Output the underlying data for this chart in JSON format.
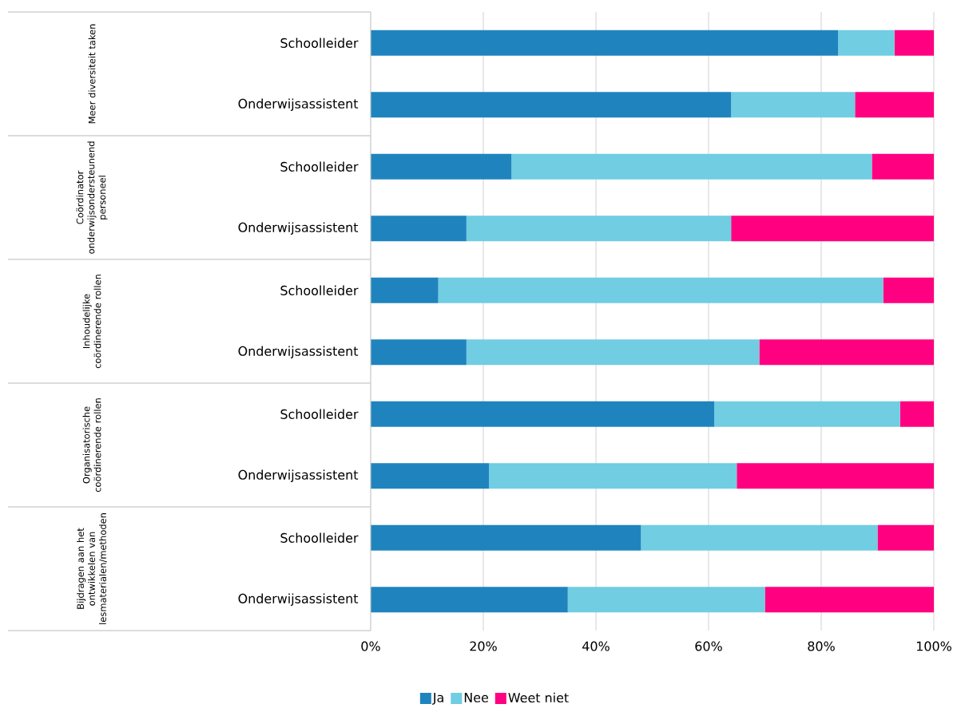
{
  "chart_data": {
    "type": "bar",
    "orientation": "horizontal",
    "stacked": true,
    "categories": [
      "Schoolleider",
      "Onderwijsassistent",
      "Schoolleider",
      "Onderwijsassistent",
      "Schoolleider",
      "Onderwijsassistent",
      "Schoolleider",
      "Onderwijsassistent",
      "Schoolleider",
      "Onderwijsassistent"
    ],
    "series": [
      {
        "name": "Ja",
        "color": "#1f84be",
        "values": [
          83,
          64,
          25,
          17,
          12,
          17,
          61,
          21,
          48,
          35
        ]
      },
      {
        "name": "Nee",
        "color": "#70cde2",
        "values": [
          10,
          22,
          64,
          47,
          79,
          52,
          33,
          44,
          42,
          35
        ]
      },
      {
        "name": "Weet niet",
        "color": "#ff0080",
        "values": [
          7,
          14,
          11,
          36,
          9,
          31,
          6,
          35,
          10,
          30
        ]
      }
    ],
    "annotations": [
      "Meer diversiteit taken",
      "Coördinator onderwijsondersteunend personeel",
      "Inhoudelijke coördinerende rollen",
      "Organisatorische coördinerende rollen",
      "Bijdragen aan het ontwikkelen van lesmaterialen/methoden"
    ],
    "xlim": [
      0,
      100
    ],
    "xticks": [
      {
        "value": 0,
        "label": "0%"
      },
      {
        "value": 20,
        "label": "20%"
      },
      {
        "value": 40,
        "label": "40%"
      },
      {
        "value": 60,
        "label": "60%"
      },
      {
        "value": 80,
        "label": "80%"
      },
      {
        "value": 100,
        "label": "100%"
      }
    ],
    "grid": "x",
    "legend": "bottom"
  }
}
